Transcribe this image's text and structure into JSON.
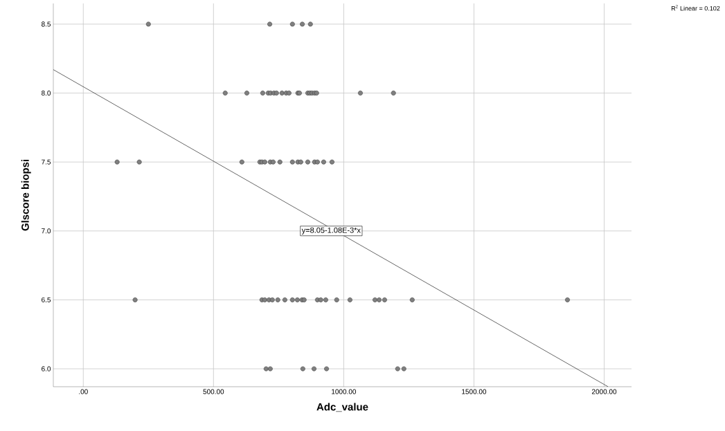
{
  "chart_data": {
    "type": "scatter",
    "xlabel": "Adc_value",
    "ylabel": "Glscore biopsi",
    "xlim": [
      -115,
      2105
    ],
    "ylim": [
      5.87,
      8.65
    ],
    "xticks": [
      {
        "value": 0,
        "label": ".00"
      },
      {
        "value": 500,
        "label": "500.00"
      },
      {
        "value": 1000,
        "label": "1000.00"
      },
      {
        "value": 1500,
        "label": "1500.00"
      },
      {
        "value": 2000,
        "label": "2000.00"
      }
    ],
    "yticks": [
      {
        "value": 6,
        "label": "6.0"
      },
      {
        "value": 6.5,
        "label": "6.5"
      },
      {
        "value": 7,
        "label": "7.0"
      },
      {
        "value": 7.5,
        "label": "7.5"
      },
      {
        "value": 8,
        "label": "8.0"
      },
      {
        "value": 8.5,
        "label": "8.5"
      }
    ],
    "grid": true,
    "marker": "circle",
    "series": [
      {
        "color": "#7f7f7f",
        "x": [
          250,
          716,
          803,
          841,
          872,
          545,
          628,
          689,
          710,
          719,
          732,
          742,
          763,
          779,
          790,
          824,
          830,
          862,
          870,
          878,
          888,
          896,
          1064,
          1191,
          130,
          215,
          609,
          678,
          686,
          697,
          718,
          729,
          755,
          803,
          824,
          835,
          862,
          888,
          899,
          923,
          955,
          199,
          686,
          697,
          713,
          726,
          747,
          774,
          803,
          822,
          840,
          848,
          899,
          912,
          931,
          973,
          1024,
          1120,
          1136,
          1157,
          1263,
          1859,
          702,
          718,
          843,
          886,
          934,
          1207,
          1231
        ],
        "values": [
          8.5,
          8.5,
          8.5,
          8.5,
          8.5,
          8.0,
          8.0,
          8.0,
          8.0,
          8.0,
          8.0,
          8.0,
          8.0,
          8.0,
          8.0,
          8.0,
          8.0,
          8.0,
          8.0,
          8.0,
          8.0,
          8.0,
          8.0,
          8.0,
          7.5,
          7.5,
          7.5,
          7.5,
          7.5,
          7.5,
          7.5,
          7.5,
          7.5,
          7.5,
          7.5,
          7.5,
          7.5,
          7.5,
          7.5,
          7.5,
          7.5,
          6.5,
          6.5,
          6.5,
          6.5,
          6.5,
          6.5,
          6.5,
          6.5,
          6.5,
          6.5,
          6.5,
          6.5,
          6.5,
          6.5,
          6.5,
          6.5,
          6.5,
          6.5,
          6.5,
          6.5,
          6.5,
          6.0,
          6.0,
          6.0,
          6.0,
          6.0,
          6.0,
          6.0
        ]
      },
      {
        "type": "line",
        "color": "#000000",
        "marker": "none",
        "x": [
          -115,
          2015
        ],
        "values": [
          8.17,
          5.87
        ]
      }
    ],
    "annotations": [
      {
        "text": "y=8.05-1.08E-3*x",
        "x": 952,
        "y": 7.0
      },
      "R$^{2}$ Linear = 0.102"
    ]
  }
}
